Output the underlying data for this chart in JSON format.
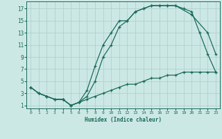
{
  "xlabel": "Humidex (Indice chaleur)",
  "xlim": [
    -0.5,
    23.5
  ],
  "ylim": [
    0.5,
    18.2
  ],
  "xticks": [
    0,
    1,
    2,
    3,
    4,
    5,
    6,
    7,
    8,
    9,
    10,
    11,
    12,
    13,
    14,
    15,
    16,
    17,
    18,
    19,
    20,
    21,
    22,
    23
  ],
  "yticks": [
    1,
    3,
    5,
    7,
    9,
    11,
    13,
    15,
    17
  ],
  "background_color": "#cce8e5",
  "grid_color": "#aaccca",
  "line_color": "#1a6b5a",
  "series": [
    {
      "x": [
        0,
        1,
        2,
        3,
        4,
        5,
        6,
        7,
        8,
        9,
        10,
        11,
        12,
        13,
        14,
        15,
        16,
        17,
        18,
        20,
        22,
        23
      ],
      "y": [
        4,
        3,
        2.5,
        2,
        2,
        1,
        1.5,
        2.5,
        5,
        9,
        11,
        14,
        15,
        16.5,
        17,
        17.5,
        17.5,
        17.5,
        17.5,
        16,
        13,
        9.5
      ]
    },
    {
      "x": [
        0,
        1,
        2,
        3,
        4,
        5,
        6,
        7,
        8,
        9,
        10,
        11,
        12,
        13,
        14,
        15,
        16,
        17,
        18,
        19,
        20,
        21,
        22,
        23
      ],
      "y": [
        4,
        3,
        2.5,
        2,
        2,
        1,
        1.5,
        3.5,
        7.5,
        11,
        13,
        15,
        15,
        16.5,
        17,
        17.5,
        17.5,
        17.5,
        17.5,
        17,
        16.5,
        13,
        9.5,
        6.5
      ]
    },
    {
      "x": [
        0,
        1,
        2,
        3,
        4,
        5,
        6,
        7,
        8,
        9,
        10,
        11,
        12,
        13,
        14,
        15,
        16,
        17,
        18,
        19,
        20,
        21,
        22,
        23
      ],
      "y": [
        4,
        3,
        2.5,
        2,
        2,
        1,
        1.5,
        2,
        2.5,
        3,
        3.5,
        4,
        4.5,
        4.5,
        5,
        5.5,
        5.5,
        6,
        6,
        6.5,
        6.5,
        6.5,
        6.5,
        6.5
      ]
    }
  ],
  "xlabel_fontsize": 5.5,
  "tick_fontsize_x": 4.5,
  "tick_fontsize_y": 5.5
}
